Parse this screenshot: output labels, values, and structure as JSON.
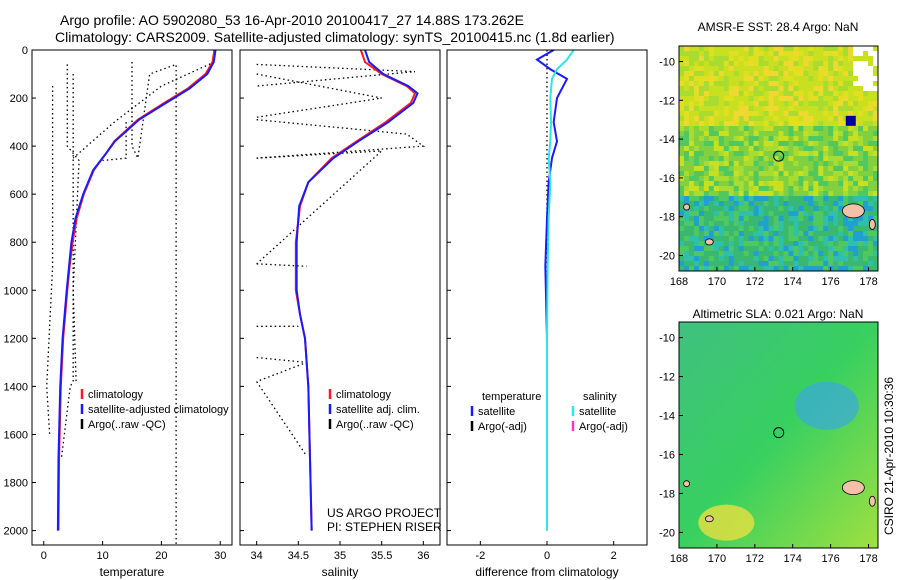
{
  "header": {
    "title_line1": "Argo profile: AO 5902080_53 16-Apr-2010 20100417_27 14.88S 173.262E",
    "title_line2": "Climatology: CARS2009. Satellite-adjusted climatology: synTS_20100415.nc (1.8d earlier)"
  },
  "side_label": "CSIRO 21-Apr-2010 10:30:36",
  "credit": {
    "line1": "US ARGO PROJECT",
    "line2": "PI: STEPHEN RISER"
  },
  "colors": {
    "climatology": "#ff1a1a",
    "satellite_temp": "#1a1aff",
    "satellite_sal": "#2ee6e6",
    "argo": "#000000",
    "argo_adj_sal": "#ff33cc"
  },
  "chart_data": [
    {
      "type": "line",
      "xlabel": "temperature",
      "ylabel": "",
      "xlim": [
        -2,
        32
      ],
      "ylim": [
        2060,
        0
      ],
      "xticks": [
        0,
        10,
        20,
        30
      ],
      "yticks": [
        0,
        200,
        400,
        600,
        800,
        1000,
        1200,
        1400,
        1600,
        1800,
        2000
      ],
      "legend": [
        "climatology",
        "satellite-adjusted climatology",
        "Argo(..raw -QC)"
      ],
      "legend_placement": "lower-right",
      "series": [
        {
          "name": "climatology",
          "x": [
            29.0,
            28.7,
            27.5,
            24.5,
            20.5,
            16.0,
            12.0,
            10.6,
            8.5,
            6.8,
            5.6,
            4.9,
            4.4,
            4.0,
            3.3,
            2.9,
            2.6,
            2.5
          ],
          "y": [
            0,
            50,
            100,
            160,
            220,
            290,
            380,
            430,
            500,
            600,
            700,
            800,
            900,
            1000,
            1200,
            1400,
            1700,
            2000
          ]
        },
        {
          "name": "satellite-adjusted climatology",
          "x": [
            29.2,
            28.9,
            27.8,
            24.8,
            20.8,
            16.2,
            12.1,
            10.6,
            8.4,
            6.7,
            5.4,
            4.7,
            4.3,
            3.9,
            3.2,
            2.8,
            2.5,
            2.4
          ],
          "y": [
            0,
            50,
            100,
            160,
            220,
            290,
            380,
            430,
            500,
            600,
            700,
            800,
            900,
            1000,
            1200,
            1400,
            1700,
            2000
          ]
        }
      ]
    },
    {
      "type": "line",
      "xlabel": "salinity",
      "ylabel": "",
      "xlim": [
        33.8,
        36.2
      ],
      "ylim": [
        2060,
        0
      ],
      "xticks": [
        34,
        34.5,
        35,
        35.5,
        36
      ],
      "legend": [
        "climatology",
        "satellite adj. clim.",
        "Argo(..raw -QC)"
      ],
      "legend_placement": "lower-right",
      "series": [
        {
          "name": "climatology",
          "x": [
            35.25,
            35.3,
            35.5,
            35.8,
            35.9,
            35.85,
            35.55,
            35.2,
            34.9,
            34.62,
            34.52,
            34.47,
            34.47,
            34.52,
            34.58,
            34.62,
            34.64,
            34.66
          ],
          "y": [
            0,
            50,
            100,
            150,
            180,
            220,
            300,
            380,
            450,
            550,
            650,
            800,
            1000,
            1100,
            1200,
            1400,
            1700,
            2000
          ]
        },
        {
          "name": "satellite adj. clim.",
          "x": [
            35.3,
            35.35,
            35.52,
            35.82,
            35.93,
            35.88,
            35.58,
            35.22,
            34.92,
            34.62,
            34.51,
            34.48,
            34.48,
            34.52,
            34.58,
            34.62,
            34.64,
            34.66
          ],
          "y": [
            0,
            50,
            100,
            150,
            180,
            220,
            300,
            380,
            450,
            550,
            650,
            800,
            1000,
            1100,
            1200,
            1400,
            1700,
            2000
          ]
        }
      ]
    },
    {
      "type": "line",
      "xlabel": "difference from climatology",
      "ylabel": "",
      "xlim": [
        -3,
        3
      ],
      "ylim": [
        2060,
        0
      ],
      "xticks": [
        -2,
        0,
        2
      ],
      "legend": [
        "temperature",
        "satellite",
        "Argo(-adj)",
        "salinity",
        "satellite",
        "Argo(-adj)"
      ],
      "legend_placement": "lower-center",
      "series": [
        {
          "name": "temperature satellite",
          "x": [
            0.2,
            -0.3,
            0.1,
            0.6,
            0.3,
            0.2,
            0.3,
            0.15,
            0.05,
            0.0,
            -0.05,
            0.0,
            0.0,
            0.0,
            0.0
          ],
          "y": [
            0,
            40,
            80,
            120,
            200,
            300,
            380,
            450,
            550,
            700,
            900,
            1200,
            1500,
            1800,
            2000
          ]
        },
        {
          "name": "salinity satellite",
          "x": [
            0.8,
            0.6,
            0.3,
            0.15,
            0.1,
            0.12,
            0.1,
            0.05,
            0.1,
            0.05,
            0.02,
            0.0,
            0.0,
            0.0,
            0.0
          ],
          "y": [
            0,
            40,
            80,
            120,
            200,
            300,
            380,
            450,
            550,
            700,
            900,
            1200,
            1500,
            1800,
            2000
          ]
        }
      ]
    },
    {
      "type": "heatmap",
      "title": "AMSR-E SST: 28.4  Argo: NaN",
      "xlim": [
        168,
        178.5
      ],
      "ylim": [
        -20.8,
        -9.2
      ],
      "xticks": [
        168,
        170,
        172,
        174,
        176,
        178
      ],
      "yticks": [
        -10,
        -12,
        -14,
        -16,
        -18,
        -20
      ]
    },
    {
      "type": "heatmap",
      "title": "Altimetric SLA: 0.021  Argo: NaN",
      "xlim": [
        168,
        178.5
      ],
      "ylim": [
        -20.8,
        -9.2
      ],
      "xticks": [
        168,
        170,
        172,
        174,
        176,
        178
      ],
      "yticks": [
        -10,
        -12,
        -14,
        -16,
        -18,
        -20
      ]
    }
  ]
}
